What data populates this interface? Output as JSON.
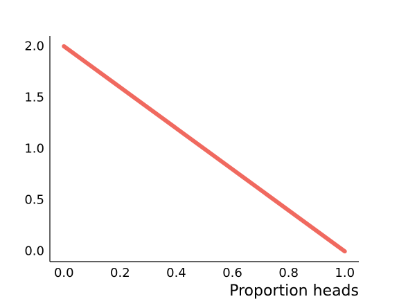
{
  "chart_data": {
    "type": "line",
    "title": "",
    "xlabel": "Proportion heads",
    "ylabel": "",
    "xlim": [
      -0.05,
      1.05
    ],
    "ylim": [
      -0.1,
      2.1
    ],
    "x_ticks": [
      "0.0",
      "0.2",
      "0.4",
      "0.6",
      "0.8",
      "1.0"
    ],
    "y_ticks": [
      "0.0",
      "0.5",
      "1.0",
      "1.5",
      "2.0"
    ],
    "grid": false,
    "legend": "none",
    "series": [
      {
        "color": "#F0695F",
        "x": [
          0.0,
          0.2,
          0.4,
          0.6,
          0.8,
          1.0
        ],
        "y": [
          2.0,
          1.6,
          1.2,
          0.8,
          0.4,
          0.0
        ]
      }
    ]
  }
}
